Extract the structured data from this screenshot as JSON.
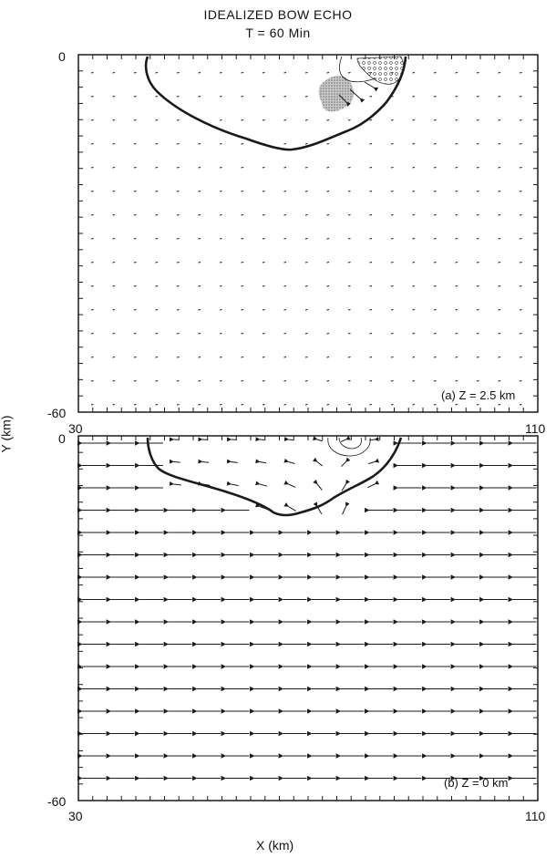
{
  "title": "IDEALIZED BOW ECHO",
  "subtitle": "T = 60 Min",
  "x_axis_label": "X (km)",
  "y_axis_label": "Y (km)",
  "panels": [
    {
      "id": "a",
      "label": "(a) Z = 2.5 km",
      "x_range": [
        30,
        110
      ],
      "y_range": [
        -60,
        0
      ],
      "x_ticks": {
        "min": "30",
        "max": "110"
      },
      "y_ticks": {
        "top": "0",
        "bottom": "-60"
      },
      "wind_field": "weak, near-calm vectors except near gust front region",
      "gust_front_contour": "bold outline",
      "shaded_regions": [
        "dotted high-value region",
        "stippled region"
      ]
    },
    {
      "id": "b",
      "label": "(b) Z = 0 km",
      "x_range": [
        30,
        110
      ],
      "y_range": [
        -60,
        0
      ],
      "x_ticks": {
        "min": "30",
        "max": "110"
      },
      "y_ticks": {
        "top": "0",
        "bottom": "-60"
      },
      "wind_field": "uniform westward flow outside cold pool; divergent outflow inside",
      "gust_front_contour": "bold outline"
    }
  ],
  "colors": {
    "ink": "#1a1a1a",
    "stipple": "#9a9a9a"
  }
}
